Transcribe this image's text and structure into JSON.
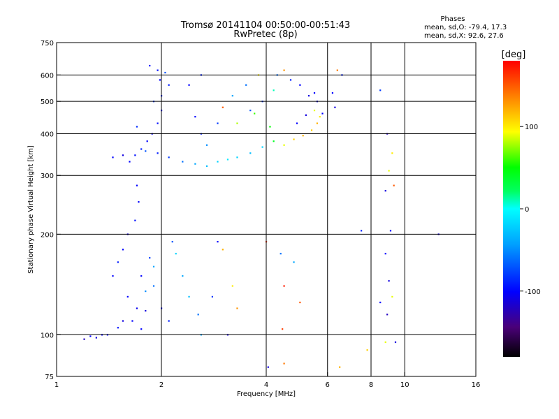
{
  "chart_data": {
    "type": "scatter",
    "title": "Tromsø 20141104 00:50:00-00:51:43",
    "subtitle": "RwPretec (8p)",
    "stats": {
      "heading": "Phases",
      "line_o": "mean, sd,O: -79.4, 17.3",
      "line_x": "mean, sd,X:  92.6, 27.6"
    },
    "xlabel": "Frequency [MHz]",
    "ylabel": "Stationary phase Virtual Height [km]",
    "x_scale": "log2",
    "y_scale": "log",
    "xlim": [
      1,
      16
    ],
    "ylim": [
      75,
      750
    ],
    "x_ticks": [
      {
        "value": 1,
        "label": "1"
      },
      {
        "value": 2,
        "label": "2"
      },
      {
        "value": 4,
        "label": "4"
      },
      {
        "value": 6,
        "label": "6"
      },
      {
        "value": 8,
        "label": "8"
      },
      {
        "value": 10,
        "label": "10"
      },
      {
        "value": 16,
        "label": "16"
      }
    ],
    "y_ticks": [
      {
        "value": 75,
        "label": "75"
      },
      {
        "value": 100,
        "label": "100"
      },
      {
        "value": 200,
        "label": "200"
      },
      {
        "value": 300,
        "label": "300"
      },
      {
        "value": 400,
        "label": "400"
      },
      {
        "value": 500,
        "label": "500"
      },
      {
        "value": 600,
        "label": "600"
      },
      {
        "value": 750,
        "label": "750"
      }
    ],
    "gridlines_x": [
      2,
      4,
      6,
      8,
      10
    ],
    "gridlines_y": [
      100,
      200,
      300,
      400,
      500,
      600
    ],
    "colorbar": {
      "label": "[deg]",
      "range": [
        -180,
        180
      ],
      "ticks": [
        {
          "value": 100,
          "label": "100"
        },
        {
          "value": 0,
          "label": "0"
        },
        {
          "value": -100,
          "label": "-100"
        }
      ]
    },
    "series": [
      {
        "values": [
          [
            1.62,
            330,
            -100
          ],
          [
            1.68,
            345,
            -95
          ],
          [
            1.75,
            360,
            -90
          ],
          [
            1.82,
            380,
            -100
          ],
          [
            1.88,
            400,
            -105
          ],
          [
            1.95,
            430,
            -95
          ],
          [
            2.0,
            470,
            -100
          ],
          [
            2.0,
            520,
            -90
          ],
          [
            1.98,
            580,
            -100
          ],
          [
            1.95,
            620,
            -95
          ],
          [
            1.85,
            640,
            -100
          ],
          [
            1.55,
            345,
            -110
          ],
          [
            1.45,
            340,
            -100
          ],
          [
            1.7,
            420,
            -85
          ],
          [
            1.9,
            500,
            -80
          ],
          [
            2.05,
            610,
            -70
          ],
          [
            2.1,
            560,
            -90
          ],
          [
            1.8,
            355,
            -70
          ],
          [
            1.95,
            350,
            -90
          ],
          [
            2.1,
            340,
            -80
          ],
          [
            2.3,
            330,
            -60
          ],
          [
            2.5,
            325,
            -40
          ],
          [
            2.7,
            320,
            -30
          ],
          [
            2.9,
            330,
            -20
          ],
          [
            3.1,
            335,
            -10
          ],
          [
            3.3,
            340,
            -20
          ],
          [
            3.6,
            350,
            -30
          ],
          [
            3.9,
            365,
            -20
          ],
          [
            4.2,
            380,
            40
          ],
          [
            4.5,
            370,
            90
          ],
          [
            4.8,
            385,
            110
          ],
          [
            5.1,
            395,
            120
          ],
          [
            5.4,
            410,
            110
          ],
          [
            5.6,
            430,
            120
          ],
          [
            5.7,
            450,
            100
          ],
          [
            5.5,
            470,
            90
          ],
          [
            4.3,
            600,
            -60
          ],
          [
            4.5,
            620,
            130
          ],
          [
            4.7,
            580,
            -90
          ],
          [
            5.0,
            560,
            -100
          ],
          [
            5.3,
            520,
            -110
          ],
          [
            5.6,
            500,
            -110
          ],
          [
            5.8,
            460,
            -100
          ],
          [
            3.2,
            520,
            -40
          ],
          [
            3.5,
            560,
            -60
          ],
          [
            3.8,
            600,
            100
          ],
          [
            3.0,
            480,
            150
          ],
          [
            3.3,
            430,
            80
          ],
          [
            2.6,
            600,
            -90
          ],
          [
            2.4,
            560,
            -100
          ],
          [
            2.5,
            450,
            -100
          ],
          [
            2.6,
            400,
            -90
          ],
          [
            6.4,
            620,
            140
          ],
          [
            6.6,
            600,
            -90
          ],
          [
            6.2,
            530,
            -100
          ],
          [
            6.3,
            480,
            -110
          ],
          [
            8.5,
            540,
            -80
          ],
          [
            8.9,
            400,
            -120
          ],
          [
            9.2,
            350,
            100
          ],
          [
            9.0,
            310,
            90
          ],
          [
            9.3,
            280,
            150
          ],
          [
            8.8,
            270,
            -110
          ],
          [
            9.1,
            205,
            -100
          ],
          [
            7.5,
            205,
            -90
          ],
          [
            12.5,
            200,
            -110
          ],
          [
            1.7,
            280,
            -100
          ],
          [
            1.72,
            250,
            -100
          ],
          [
            1.68,
            220,
            -95
          ],
          [
            1.6,
            200,
            -110
          ],
          [
            1.55,
            180,
            -100
          ],
          [
            1.5,
            165,
            -90
          ],
          [
            1.45,
            150,
            -100
          ],
          [
            1.6,
            130,
            -100
          ],
          [
            1.7,
            120,
            -105
          ],
          [
            1.8,
            118,
            -110
          ],
          [
            1.65,
            110,
            -100
          ],
          [
            1.5,
            105,
            -95
          ],
          [
            1.4,
            100,
            -100
          ],
          [
            1.3,
            98,
            -110
          ],
          [
            1.2,
            97,
            -120
          ],
          [
            1.75,
            150,
            -100
          ],
          [
            1.85,
            170,
            -80
          ],
          [
            1.9,
            140,
            -60
          ],
          [
            2.0,
            120,
            -100
          ],
          [
            2.1,
            110,
            -90
          ],
          [
            2.2,
            175,
            -20
          ],
          [
            2.3,
            150,
            -40
          ],
          [
            2.4,
            130,
            -30
          ],
          [
            2.55,
            115,
            -60
          ],
          [
            2.6,
            100,
            -40
          ],
          [
            2.8,
            130,
            -80
          ],
          [
            2.9,
            190,
            -100
          ],
          [
            3.1,
            100,
            -110
          ],
          [
            3.2,
            140,
            100
          ],
          [
            3.3,
            120,
            130
          ],
          [
            3.0,
            180,
            120
          ],
          [
            4.0,
            190,
            160
          ],
          [
            4.4,
            175,
            -60
          ],
          [
            4.5,
            140,
            170
          ],
          [
            4.45,
            104,
            160
          ],
          [
            4.05,
            80,
            -110
          ],
          [
            4.5,
            82,
            140
          ],
          [
            5.0,
            125,
            150
          ],
          [
            4.8,
            165,
            -40
          ],
          [
            6.5,
            80,
            120
          ],
          [
            7.8,
            90,
            110
          ],
          [
            8.8,
            95,
            90
          ],
          [
            9.4,
            95,
            -110
          ],
          [
            8.5,
            125,
            -100
          ],
          [
            8.8,
            175,
            -100
          ],
          [
            9.0,
            145,
            -110
          ],
          [
            9.2,
            130,
            90
          ],
          [
            8.9,
            115,
            -120
          ],
          [
            1.35,
            100,
            -100
          ],
          [
            1.25,
            99,
            -100
          ],
          [
            1.55,
            110,
            -110
          ],
          [
            1.75,
            104,
            -100
          ],
          [
            1.8,
            135,
            -50
          ],
          [
            1.9,
            160,
            -40
          ],
          [
            2.15,
            190,
            -70
          ],
          [
            3.7,
            460,
            60
          ],
          [
            4.1,
            420,
            50
          ],
          [
            4.9,
            430,
            -100
          ],
          [
            5.2,
            455,
            -110
          ],
          [
            5.5,
            530,
            -100
          ],
          [
            4.2,
            540,
            10
          ],
          [
            3.9,
            500,
            -80
          ],
          [
            3.6,
            470,
            -70
          ],
          [
            2.9,
            430,
            -80
          ],
          [
            2.7,
            370,
            -50
          ]
        ]
      }
    ]
  }
}
